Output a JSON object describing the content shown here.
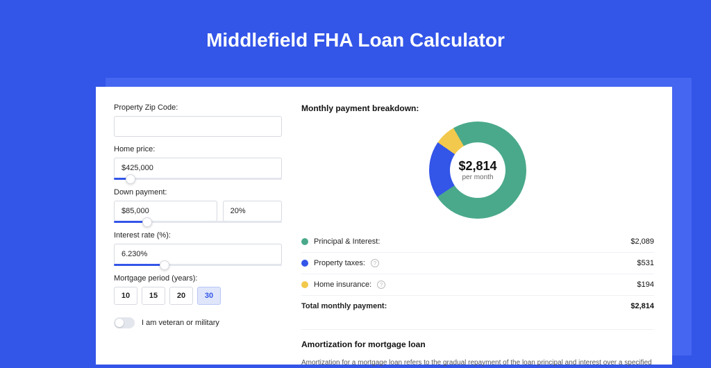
{
  "page": {
    "title": "Middlefield FHA Loan Calculator",
    "background_color": "#3355e8",
    "shadow_color": "#4566f0",
    "card_bg": "#ffffff"
  },
  "form": {
    "zip": {
      "label": "Property Zip Code:",
      "value": ""
    },
    "home_price": {
      "label": "Home price:",
      "value": "$425,000",
      "slider_pct": 10
    },
    "down_payment": {
      "label": "Down payment:",
      "value": "$85,000",
      "pct": "20%",
      "slider_pct": 20
    },
    "interest": {
      "label": "Interest rate (%):",
      "value": "6.230%",
      "slider_pct": 30
    },
    "period": {
      "label": "Mortgage period (years):",
      "options": [
        "10",
        "15",
        "20",
        "30"
      ],
      "selected_index": 3
    },
    "veteran": {
      "label": "I am veteran or military",
      "on": false
    }
  },
  "breakdown": {
    "title": "Monthly payment breakdown:",
    "center_amount": "$2,814",
    "center_sub": "per month",
    "donut": {
      "slices": [
        {
          "key": "pi",
          "color": "#4aa98b",
          "pct": 74
        },
        {
          "key": "tax",
          "color": "#3355e8",
          "pct": 19
        },
        {
          "key": "ins",
          "color": "#f2c94c",
          "pct": 7
        }
      ]
    },
    "rows": [
      {
        "color": "#4aa98b",
        "label": "Principal & Interest:",
        "info": false,
        "value": "$2,089"
      },
      {
        "color": "#3355e8",
        "label": "Property taxes:",
        "info": true,
        "value": "$531"
      },
      {
        "color": "#f2c94c",
        "label": "Home insurance:",
        "info": true,
        "value": "$194"
      }
    ],
    "total": {
      "label": "Total monthly payment:",
      "value": "$2,814"
    }
  },
  "amortization": {
    "title": "Amortization for mortgage loan",
    "text": "Amortization for a mortgage loan refers to the gradual repayment of the loan principal and interest over a specified"
  }
}
